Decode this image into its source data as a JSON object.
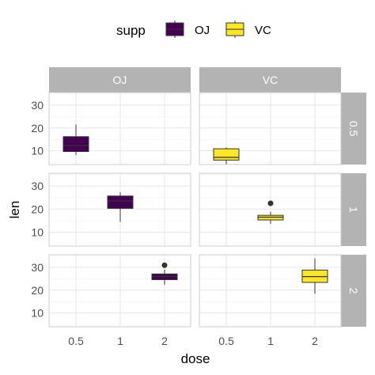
{
  "chart_data": {
    "type": "boxplot",
    "facets": {
      "columns": [
        "OJ",
        "VC"
      ],
      "rows": [
        "0.5",
        "1",
        "2"
      ]
    },
    "categories": [
      "0.5",
      "1",
      "2"
    ],
    "xlabel": "dose",
    "ylabel": "len",
    "ylim": [
      4,
      35.5
    ],
    "yticks": [
      10,
      20,
      30
    ],
    "grid": true,
    "legend": {
      "title": "supp",
      "placement": "top",
      "entries": [
        {
          "label": "OJ",
          "color": "#440154"
        },
        {
          "label": "VC",
          "color": "#fde725"
        }
      ]
    },
    "boxes": [
      {
        "supp": "OJ",
        "dose": "0.5",
        "color": "#440154",
        "min": 8.2,
        "q1": 9.7,
        "median": 12.3,
        "q3": 16.2,
        "max": 21.5,
        "outliers": []
      },
      {
        "supp": "OJ",
        "dose": "1",
        "color": "#440154",
        "min": 14.5,
        "q1": 20.3,
        "median": 23.5,
        "q3": 25.65,
        "max": 27.3,
        "outliers": []
      },
      {
        "supp": "OJ",
        "dose": "2",
        "color": "#440154",
        "min": 22.4,
        "q1": 24.6,
        "median": 26.0,
        "q3": 27.1,
        "max": 29.0,
        "outliers": [
          30.9
        ]
      },
      {
        "supp": "VC",
        "dose": "0.5",
        "color": "#fde725",
        "min": 4.2,
        "q1": 5.95,
        "median": 7.15,
        "q3": 10.9,
        "max": 11.5,
        "outliers": []
      },
      {
        "supp": "VC",
        "dose": "1",
        "color": "#fde725",
        "min": 13.6,
        "q1": 15.3,
        "median": 16.5,
        "q3": 17.3,
        "max": 18.8,
        "outliers": [
          22.5
        ]
      },
      {
        "supp": "VC",
        "dose": "2",
        "color": "#fde725",
        "min": 18.5,
        "q1": 23.4,
        "median": 25.95,
        "q3": 28.8,
        "max": 33.9,
        "outliers": []
      }
    ]
  }
}
